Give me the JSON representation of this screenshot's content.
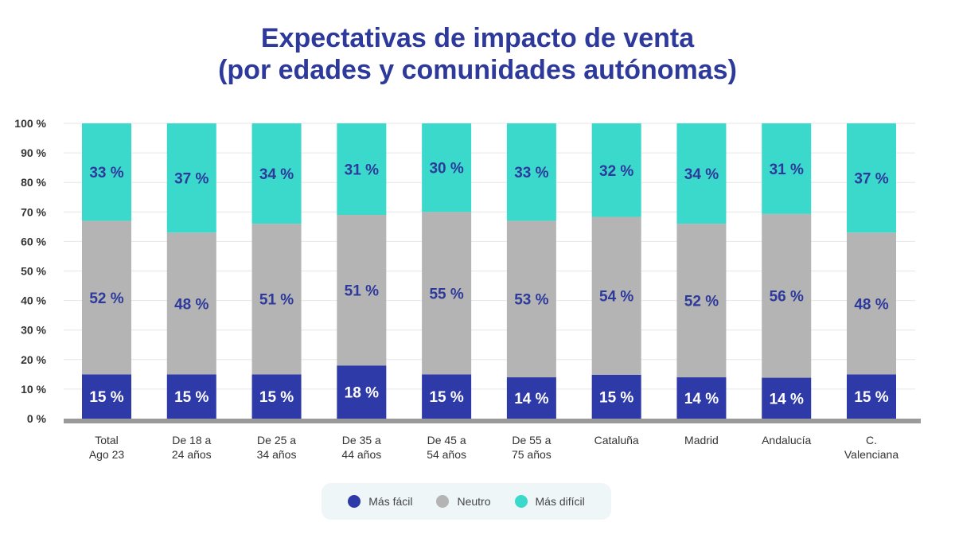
{
  "title_line1": "Expectativas de impacto de venta",
  "title_line2": "(por edades y comunidades autónomas)",
  "chart_data": {
    "type": "bar",
    "stacked": true,
    "title": "Expectativas de impacto de venta (por edades y comunidades autónomas)",
    "categories": [
      [
        "Total",
        "Ago 23"
      ],
      [
        "De 18 a",
        "24 años"
      ],
      [
        "De 25 a",
        "34 años"
      ],
      [
        "De 35 a",
        "44 años"
      ],
      [
        "De 45 a",
        "54 años"
      ],
      [
        "De 55 a",
        "75 años"
      ],
      [
        "Cataluña",
        ""
      ],
      [
        "Madrid",
        ""
      ],
      [
        "Andalucía",
        ""
      ],
      [
        "C.",
        "Valenciana"
      ]
    ],
    "series": [
      {
        "name": "Más fácil",
        "color": "#2e3aa8",
        "values": [
          15,
          15,
          15,
          18,
          15,
          14,
          15,
          14,
          14,
          15
        ]
      },
      {
        "name": "Neutro",
        "color": "#b4b4b4",
        "values": [
          52,
          48,
          51,
          51,
          55,
          53,
          54,
          52,
          56,
          48
        ]
      },
      {
        "name": "Más difícil",
        "color": "#3ad9cc",
        "values": [
          33,
          37,
          34,
          31,
          30,
          33,
          32,
          34,
          31,
          37
        ]
      }
    ],
    "ylim": [
      0,
      100
    ],
    "yticks": [
      "0 %",
      "10 %",
      "20 %",
      "30 %",
      "40 %",
      "50 %",
      "60 %",
      "70 %",
      "80 %",
      "90 %",
      "100 %"
    ],
    "value_suffix": " %",
    "grid": true,
    "legend_position": "bottom"
  }
}
